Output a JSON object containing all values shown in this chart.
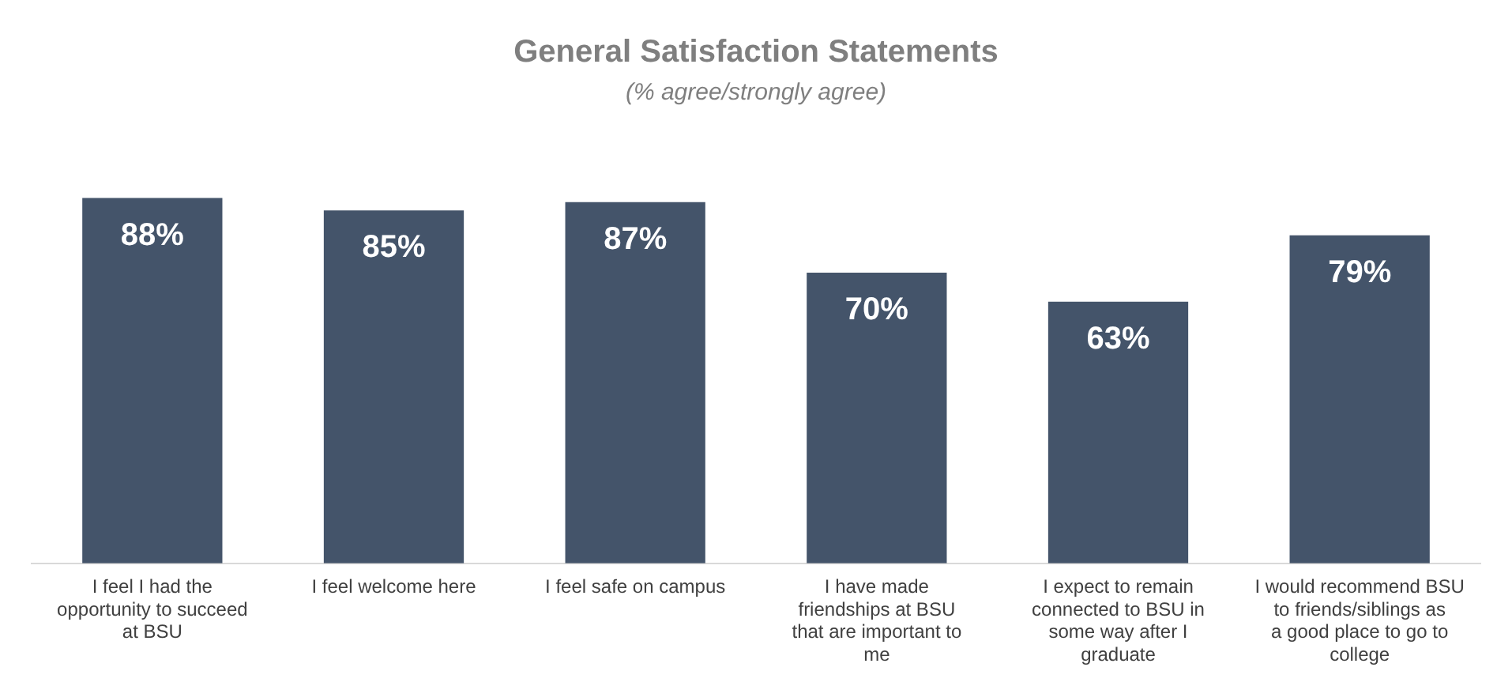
{
  "chart_data": {
    "type": "bar",
    "title": "General Satisfaction Statements",
    "subtitle": "(% agree/strongly agree)",
    "categories": [
      "I feel I had the opportunity to succeed at BSU",
      "I feel welcome here",
      "I feel safe on campus",
      "I have made friendships at BSU that are important to me",
      "I expect to remain connected to BSU in some way after I graduate",
      "I would recommend BSU to friends/siblings as a good place to go to college"
    ],
    "values": [
      88,
      85,
      87,
      70,
      63,
      79
    ],
    "value_labels": [
      "88%",
      "85%",
      "87%",
      "70%",
      "63%",
      "79%"
    ],
    "color": "#44546a",
    "grid": false,
    "legend": false,
    "tick_labels": "x"
  }
}
